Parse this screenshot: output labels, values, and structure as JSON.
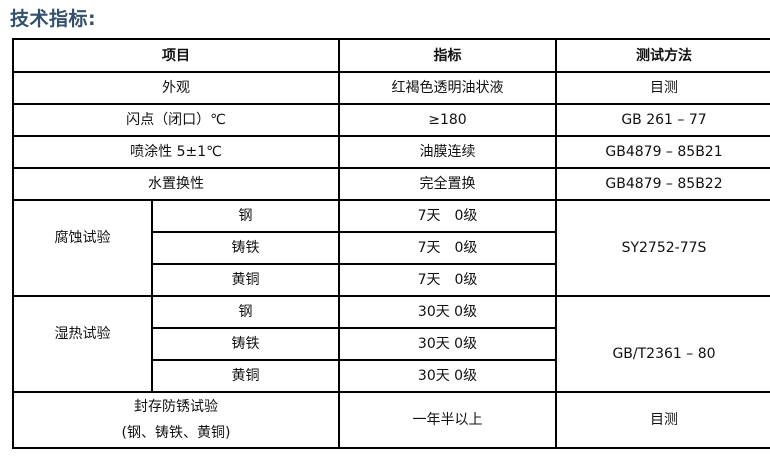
{
  "title": "技术指标:",
  "headers": [
    "项目",
    "指标",
    "测试方法"
  ],
  "simple_rows": [
    {
      "item": "外观",
      "spec": "红褐色透明油状液",
      "method": "目测"
    },
    {
      "item": "闪点（闭口）℃",
      "spec": "≥180",
      "method": "GB 261 – 77"
    },
    {
      "item": "喷涂性 5±1℃",
      "spec": "油膜连续",
      "method": "GB4879 – 85B21"
    },
    {
      "item": "水置换性",
      "spec": "完全置换",
      "method": "GB4879 – 85B22"
    }
  ],
  "corrosion": {
    "item": "腐蚀试验",
    "method": "SY2752-77S",
    "rows": [
      {
        "metal": "钢",
        "spec": "7天　0级"
      },
      {
        "metal": "铸铁",
        "spec": "7天　0级"
      },
      {
        "metal": "黄铜",
        "spec": "7天　0级"
      }
    ]
  },
  "humidity": {
    "item": "湿热试验",
    "method": "GB/T2361 – 80",
    "rows": [
      {
        "metal": "钢",
        "spec": "30天  0级"
      },
      {
        "metal": "铸铁",
        "spec": "30天  0级"
      },
      {
        "metal": "黄铜",
        "spec": "30天  0级"
      }
    ]
  },
  "storage": {
    "item_line1": "封存防锈试验",
    "item_line2": "(钢、铸铁、黄铜)",
    "spec": "一年半以上",
    "method": "目测"
  }
}
